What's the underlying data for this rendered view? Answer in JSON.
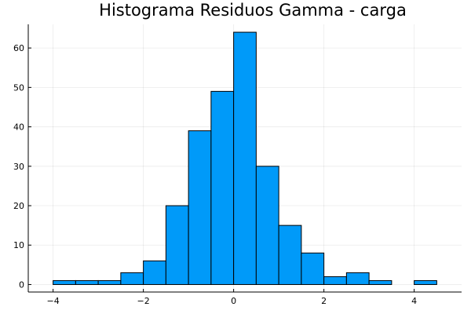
{
  "chart_data": {
    "type": "bar",
    "title": "Histograma Residuos Gamma - carga",
    "xlabel": "",
    "ylabel": "",
    "bin_edges": [
      -4,
      -3.5,
      -3,
      -2.5,
      -2,
      -1.5,
      -1,
      -0.5,
      0,
      0.5,
      1,
      1.5,
      2,
      2.5,
      3,
      3.5,
      4,
      4.5
    ],
    "counts": [
      1,
      1,
      1,
      3,
      6,
      20,
      39,
      49,
      64,
      30,
      15,
      8,
      2,
      3,
      1,
      0,
      1
    ],
    "bin_width": 0.5,
    "xlim": [
      -4.55,
      5.05
    ],
    "ylim": [
      -1.9,
      66
    ],
    "x_ticks": [
      -4,
      -2,
      0,
      2,
      4
    ],
    "x_tick_labels": [
      "−4",
      "−2",
      "0",
      "2",
      "4"
    ],
    "y_ticks": [
      0,
      10,
      20,
      30,
      40,
      50,
      60
    ],
    "y_tick_labels": [
      "0",
      "10",
      "20",
      "30",
      "40",
      "50",
      "60"
    ],
    "grid": true,
    "legend": "none",
    "bar_color": "#009AF9",
    "edge_color": "#000000"
  }
}
